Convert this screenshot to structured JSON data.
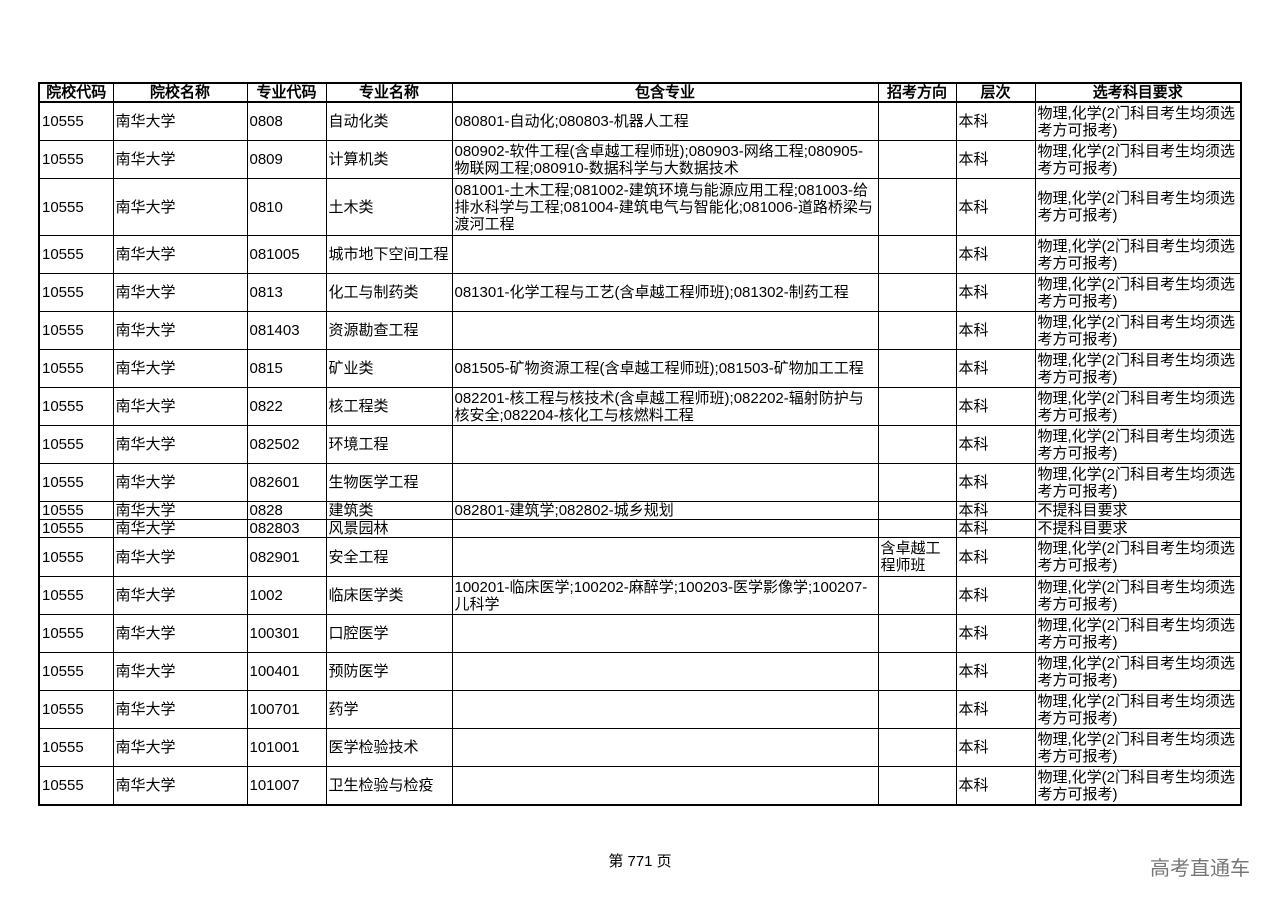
{
  "table": {
    "headers": [
      "院校代码",
      "院校名称",
      "专业代码",
      "专业名称",
      "包含专业",
      "招考方向",
      "层次",
      "选考科目要求"
    ],
    "rows": [
      [
        "10555",
        "南华大学",
        "0808",
        "自动化类",
        "080801-自动化;080803-机器人工程",
        "",
        "本科",
        "物理,化学(2门科目考生均须选考方可报考)"
      ],
      [
        "10555",
        "南华大学",
        "0809",
        "计算机类",
        "080902-软件工程(含卓越工程师班);080903-网络工程;080905-物联网工程;080910-数据科学与大数据技术",
        "",
        "本科",
        "物理,化学(2门科目考生均须选考方可报考)"
      ],
      [
        "10555",
        "南华大学",
        "0810",
        "土木类",
        "081001-土木工程;081002-建筑环境与能源应用工程;081003-给排水科学与工程;081004-建筑电气与智能化;081006-道路桥梁与渡河工程",
        "",
        "本科",
        "物理,化学(2门科目考生均须选考方可报考)"
      ],
      [
        "10555",
        "南华大学",
        "081005",
        "城市地下空间工程",
        "",
        "",
        "本科",
        "物理,化学(2门科目考生均须选考方可报考)"
      ],
      [
        "10555",
        "南华大学",
        "0813",
        "化工与制药类",
        "081301-化学工程与工艺(含卓越工程师班);081302-制药工程",
        "",
        "本科",
        "物理,化学(2门科目考生均须选考方可报考)"
      ],
      [
        "10555",
        "南华大学",
        "081403",
        "资源勘查工程",
        "",
        "",
        "本科",
        "物理,化学(2门科目考生均须选考方可报考)"
      ],
      [
        "10555",
        "南华大学",
        "0815",
        "矿业类",
        "081505-矿物资源工程(含卓越工程师班);081503-矿物加工工程",
        "",
        "本科",
        "物理,化学(2门科目考生均须选考方可报考)"
      ],
      [
        "10555",
        "南华大学",
        "0822",
        "核工程类",
        "082201-核工程与核技术(含卓越工程师班);082202-辐射防护与核安全;082204-核化工与核燃料工程",
        "",
        "本科",
        "物理,化学(2门科目考生均须选考方可报考)"
      ],
      [
        "10555",
        "南华大学",
        "082502",
        "环境工程",
        "",
        "",
        "本科",
        "物理,化学(2门科目考生均须选考方可报考)"
      ],
      [
        "10555",
        "南华大学",
        "082601",
        "生物医学工程",
        "",
        "",
        "本科",
        "物理,化学(2门科目考生均须选考方可报考)"
      ],
      [
        "10555",
        "南华大学",
        "0828",
        "建筑类",
        "082801-建筑学;082802-城乡规划",
        "",
        "本科",
        "不提科目要求"
      ],
      [
        "10555",
        "南华大学",
        "082803",
        "风景园林",
        "",
        "",
        "本科",
        "不提科目要求"
      ],
      [
        "10555",
        "南华大学",
        "082901",
        "安全工程",
        "",
        "含卓越工程师班",
        "本科",
        "物理,化学(2门科目考生均须选考方可报考)"
      ],
      [
        "10555",
        "南华大学",
        "1002",
        "临床医学类",
        "100201-临床医学;100202-麻醉学;100203-医学影像学;100207-儿科学",
        "",
        "本科",
        "物理,化学(2门科目考生均须选考方可报考)"
      ],
      [
        "10555",
        "南华大学",
        "100301",
        "口腔医学",
        "",
        "",
        "本科",
        "物理,化学(2门科目考生均须选考方可报考)"
      ],
      [
        "10555",
        "南华大学",
        "100401",
        "预防医学",
        "",
        "",
        "本科",
        "物理,化学(2门科目考生均须选考方可报考)"
      ],
      [
        "10555",
        "南华大学",
        "100701",
        "药学",
        "",
        "",
        "本科",
        "物理,化学(2门科目考生均须选考方可报考)"
      ],
      [
        "10555",
        "南华大学",
        "101001",
        "医学检验技术",
        "",
        "",
        "本科",
        "物理,化学(2门科目考生均须选考方可报考)"
      ],
      [
        "10555",
        "南华大学",
        "101007",
        "卫生检验与检疫",
        "",
        "",
        "本科",
        "物理,化学(2门科目考生均须选考方可报考)"
      ]
    ]
  },
  "footer": {
    "page_label": "第 771 页"
  },
  "watermark": "高考直通车"
}
